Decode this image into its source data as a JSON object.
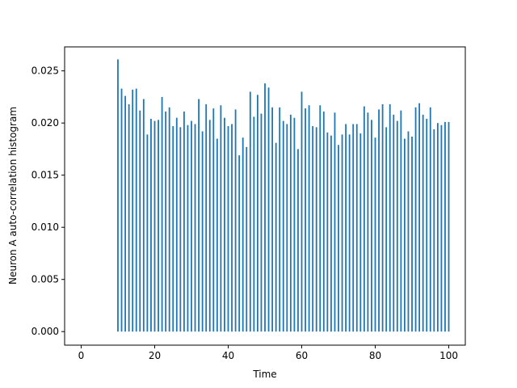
{
  "chart_data": {
    "type": "bar",
    "title": "",
    "xlabel": "Time",
    "ylabel": "Neuron A auto-correlation histogram",
    "xlim": [
      -4.5,
      104.5
    ],
    "ylim": [
      -0.0013,
      0.0273
    ],
    "xticks": [
      0,
      20,
      40,
      60,
      80,
      100
    ],
    "xtick_labels": [
      "0",
      "20",
      "40",
      "60",
      "80",
      "100"
    ],
    "yticks": [
      0.0,
      0.005,
      0.01,
      0.015,
      0.02,
      0.025
    ],
    "ytick_labels": [
      "0.000",
      "0.005",
      "0.010",
      "0.015",
      "0.020",
      "0.025"
    ],
    "grid": false,
    "bar_color": "#1f77b4",
    "x": [
      10,
      11,
      12,
      13,
      14,
      15,
      16,
      17,
      18,
      19,
      20,
      21,
      22,
      23,
      24,
      25,
      26,
      27,
      28,
      29,
      30,
      31,
      32,
      33,
      34,
      35,
      36,
      37,
      38,
      39,
      40,
      41,
      42,
      43,
      44,
      45,
      46,
      47,
      48,
      49,
      50,
      51,
      52,
      53,
      54,
      55,
      56,
      57,
      58,
      59,
      60,
      61,
      62,
      63,
      64,
      65,
      66,
      67,
      68,
      69,
      70,
      71,
      72,
      73,
      74,
      75,
      76,
      77,
      78,
      79,
      80,
      81,
      82,
      83,
      84,
      85,
      86,
      87,
      88,
      89,
      90,
      91,
      92,
      93,
      94,
      95,
      96,
      97,
      98,
      99,
      100
    ],
    "values": [
      0.0261,
      0.0233,
      0.0226,
      0.0218,
      0.0232,
      0.0233,
      0.0212,
      0.0223,
      0.0189,
      0.0204,
      0.0202,
      0.0203,
      0.0225,
      0.0211,
      0.0215,
      0.0197,
      0.0205,
      0.0196,
      0.0211,
      0.0198,
      0.0202,
      0.0199,
      0.0223,
      0.0192,
      0.0218,
      0.0203,
      0.0214,
      0.0185,
      0.0217,
      0.0205,
      0.0197,
      0.0199,
      0.0213,
      0.0169,
      0.0186,
      0.0177,
      0.023,
      0.0206,
      0.0227,
      0.0209,
      0.0238,
      0.0234,
      0.0215,
      0.0181,
      0.0215,
      0.0202,
      0.0199,
      0.0208,
      0.0205,
      0.0175,
      0.023,
      0.0214,
      0.0217,
      0.0197,
      0.0196,
      0.0217,
      0.0211,
      0.0191,
      0.0188,
      0.021,
      0.0179,
      0.0189,
      0.0199,
      0.0189,
      0.0199,
      0.0199,
      0.019,
      0.0216,
      0.021,
      0.0203,
      0.0186,
      0.0213,
      0.0218,
      0.0196,
      0.0218,
      0.0208,
      0.0202,
      0.0212,
      0.0185,
      0.0192,
      0.0187,
      0.0215,
      0.0219,
      0.0208,
      0.0204,
      0.0215,
      0.0194,
      0.02,
      0.0198,
      0.0201,
      0.0201
    ]
  }
}
